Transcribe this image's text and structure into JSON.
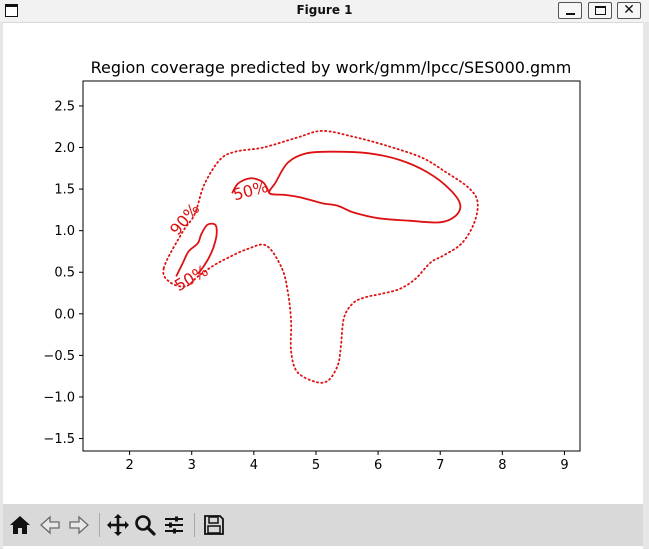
{
  "window": {
    "title": "Figure 1"
  },
  "chart_data": {
    "type": "contour",
    "title": "Region coverage predicted by work/gmm/lpcc/SES000.gmm",
    "xlabel": "",
    "ylabel": "",
    "xlim": [
      1.25,
      9.25
    ],
    "ylim": [
      -1.65,
      2.8
    ],
    "xticks": [
      "2",
      "3",
      "4",
      "5",
      "6",
      "7",
      "8",
      "9"
    ],
    "yticks": [
      "−1.5",
      "−1.0",
      "−0.5",
      "0.0",
      "0.5",
      "1.0",
      "1.5",
      "2.0",
      "2.5"
    ],
    "color": "#dd1111",
    "grid": false,
    "levels": [
      {
        "label": "90%",
        "style": "dotted",
        "closed": true,
        "points": [
          [
            2.55,
            0.55
          ],
          [
            2.85,
            0.98
          ],
          [
            3.05,
            1.2
          ],
          [
            3.2,
            1.55
          ],
          [
            3.45,
            1.85
          ],
          [
            3.7,
            1.95
          ],
          [
            4.15,
            2.0
          ],
          [
            4.7,
            2.12
          ],
          [
            5.1,
            2.2
          ],
          [
            5.6,
            2.13
          ],
          [
            6.1,
            2.03
          ],
          [
            6.7,
            1.88
          ],
          [
            7.1,
            1.7
          ],
          [
            7.45,
            1.52
          ],
          [
            7.6,
            1.35
          ],
          [
            7.55,
            1.1
          ],
          [
            7.35,
            0.85
          ],
          [
            7.05,
            0.7
          ],
          [
            6.85,
            0.62
          ],
          [
            6.6,
            0.42
          ],
          [
            6.35,
            0.3
          ],
          [
            6.05,
            0.24
          ],
          [
            5.8,
            0.2
          ],
          [
            5.6,
            0.13
          ],
          [
            5.45,
            -0.05
          ],
          [
            5.4,
            -0.4
          ],
          [
            5.35,
            -0.62
          ],
          [
            5.2,
            -0.8
          ],
          [
            5.0,
            -0.82
          ],
          [
            4.7,
            -0.7
          ],
          [
            4.6,
            -0.45
          ],
          [
            4.6,
            -0.1
          ],
          [
            4.55,
            0.25
          ],
          [
            4.45,
            0.55
          ],
          [
            4.2,
            0.82
          ],
          [
            3.9,
            0.78
          ],
          [
            3.6,
            0.68
          ],
          [
            3.35,
            0.58
          ],
          [
            3.1,
            0.45
          ],
          [
            2.9,
            0.33
          ],
          [
            2.65,
            0.38
          ]
        ]
      },
      {
        "label": "50%",
        "style": "solid",
        "closed": true,
        "points": [
          [
            4.25,
            1.45
          ],
          [
            4.35,
            1.58
          ],
          [
            4.55,
            1.82
          ],
          [
            4.85,
            1.93
          ],
          [
            5.3,
            1.95
          ],
          [
            5.85,
            1.93
          ],
          [
            6.35,
            1.85
          ],
          [
            6.8,
            1.7
          ],
          [
            7.15,
            1.5
          ],
          [
            7.32,
            1.32
          ],
          [
            7.25,
            1.18
          ],
          [
            7.0,
            1.1
          ],
          [
            6.5,
            1.12
          ],
          [
            6.0,
            1.15
          ],
          [
            5.6,
            1.22
          ],
          [
            5.35,
            1.3
          ],
          [
            5.1,
            1.33
          ],
          [
            4.75,
            1.4
          ],
          [
            4.5,
            1.43
          ]
        ]
      },
      {
        "label": "50%",
        "style": "solid",
        "closed": false,
        "points": [
          [
            3.65,
            1.45
          ],
          [
            3.75,
            1.57
          ],
          [
            3.95,
            1.63
          ],
          [
            4.15,
            1.58
          ],
          [
            4.25,
            1.45
          ]
        ]
      },
      {
        "label": "50%",
        "style": "solid",
        "closed": false,
        "points": [
          [
            2.75,
            0.45
          ],
          [
            2.85,
            0.6
          ],
          [
            2.95,
            0.75
          ],
          [
            3.1,
            0.85
          ],
          [
            3.15,
            0.95
          ],
          [
            3.25,
            1.07
          ],
          [
            3.38,
            1.07
          ],
          [
            3.4,
            0.95
          ],
          [
            3.35,
            0.8
          ],
          [
            3.28,
            0.68
          ],
          [
            3.2,
            0.58
          ],
          [
            3.1,
            0.48
          ]
        ]
      }
    ],
    "labels": [
      {
        "text": "90%",
        "x": 2.9,
        "y": 1.13,
        "rotation": -50
      },
      {
        "text": "50%",
        "x": 3.95,
        "y": 1.47,
        "rotation": -15
      },
      {
        "text": "50%",
        "x": 3.0,
        "y": 0.42,
        "rotation": -30
      }
    ]
  },
  "toolbar": {
    "tools": [
      "home-icon",
      "back-icon",
      "forward-icon",
      "pan-icon",
      "zoom-icon",
      "configure-subplots-icon",
      "save-icon"
    ]
  }
}
